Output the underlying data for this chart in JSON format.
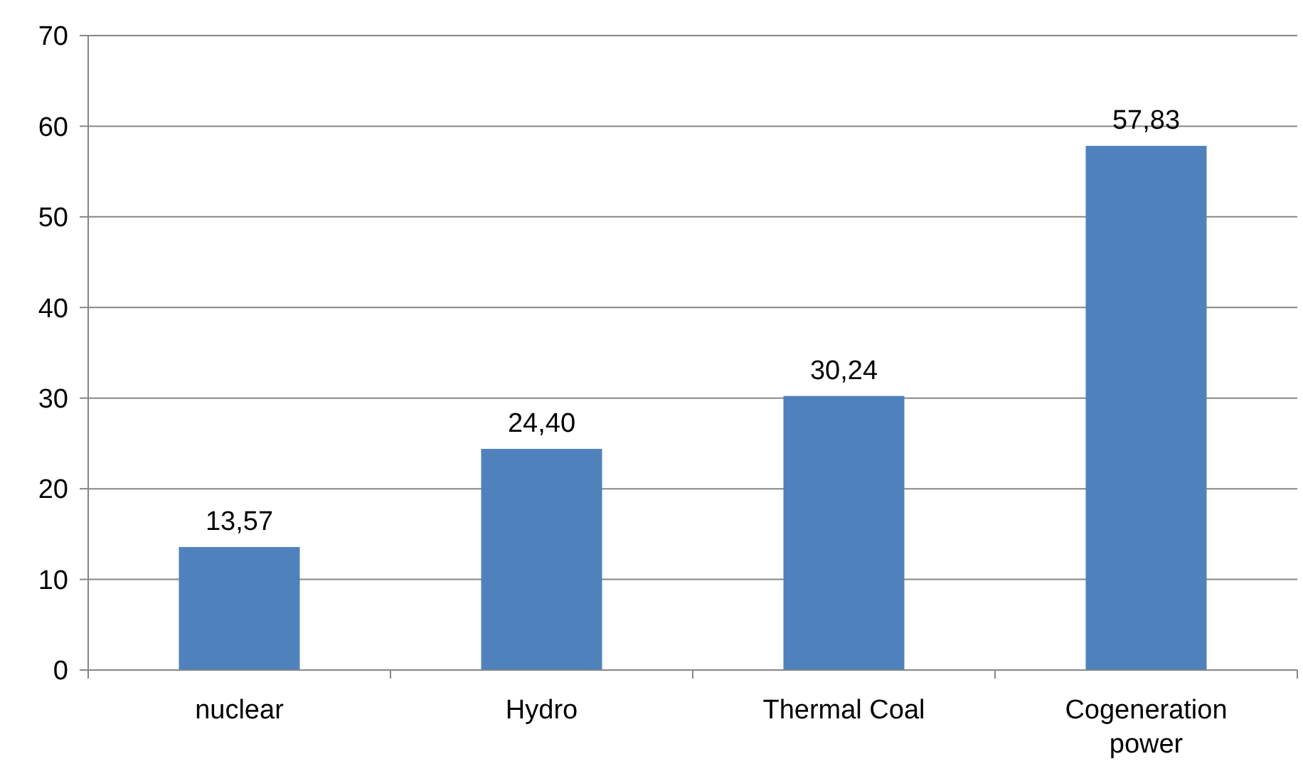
{
  "chart_data": {
    "type": "bar",
    "categories": [
      "nuclear",
      "Hydro",
      "Thermal Coal",
      "Cogeneration power"
    ],
    "values": [
      13.57,
      24.4,
      30.24,
      57.83
    ],
    "value_labels": [
      "13,57",
      "24,40",
      "30,24",
      "57,83"
    ],
    "color": "#4f81bd",
    "ylim": [
      0,
      70
    ],
    "yticks": [
      0,
      10,
      20,
      30,
      40,
      50,
      60,
      70
    ],
    "grid": "y"
  }
}
